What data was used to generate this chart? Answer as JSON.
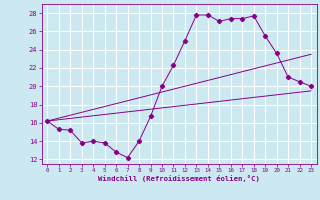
{
  "xlabel": "Windchill (Refroidissement éolien,°C)",
  "background_color": "#cce8f0",
  "grid_color": "#ffffff",
  "line_color": "#880088",
  "xlim": [
    -0.5,
    23.5
  ],
  "ylim": [
    11.5,
    29.0
  ],
  "xticks": [
    0,
    1,
    2,
    3,
    4,
    5,
    6,
    7,
    8,
    9,
    10,
    11,
    12,
    13,
    14,
    15,
    16,
    17,
    18,
    19,
    20,
    21,
    22,
    23
  ],
  "yticks": [
    12,
    14,
    16,
    18,
    20,
    22,
    24,
    26,
    28
  ],
  "curve1_x": [
    0,
    1,
    2,
    3,
    4,
    5,
    6,
    7,
    8,
    9,
    10,
    11,
    12,
    13,
    14,
    15,
    16,
    17,
    18,
    19,
    20,
    21,
    22,
    23
  ],
  "curve1_y": [
    16.2,
    15.3,
    15.2,
    13.8,
    14.0,
    13.8,
    12.8,
    12.2,
    14.0,
    16.7,
    20.0,
    22.3,
    25.0,
    27.8,
    27.8,
    27.1,
    27.4,
    27.4,
    27.7,
    25.5,
    23.6,
    21.0,
    20.5,
    20.0
  ],
  "line1_x": [
    0,
    23
  ],
  "line1_y": [
    16.2,
    19.5
  ],
  "line2_x": [
    0,
    23
  ],
  "line2_y": [
    16.2,
    23.5
  ]
}
